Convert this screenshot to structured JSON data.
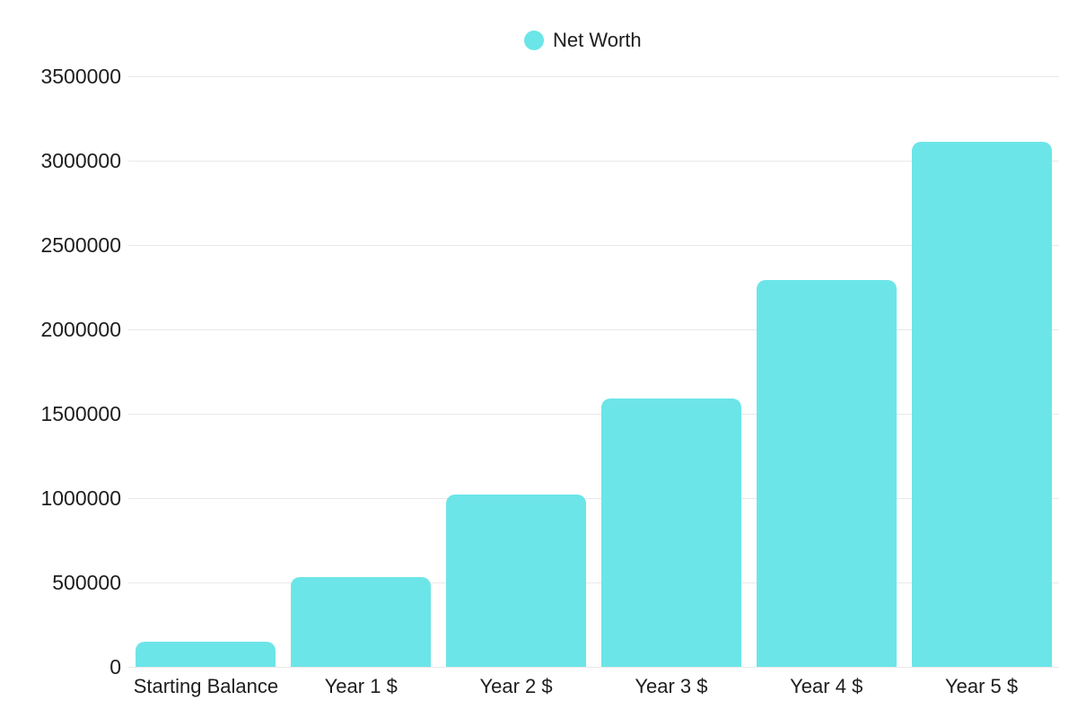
{
  "chart_data": {
    "type": "bar",
    "title": "",
    "legend": "Net Worth",
    "legend_position": "top-center",
    "categories": [
      "Starting Balance",
      "Year 1 $",
      "Year 2 $",
      "Year 3 $",
      "Year 4 $",
      "Year 5 $"
    ],
    "series": [
      {
        "name": "Net Worth",
        "values": [
          150000,
          530000,
          1020000,
          1590000,
          2290000,
          3110000
        ]
      }
    ],
    "xlabel": "",
    "ylabel": "",
    "ylim": [
      0,
      3500000
    ],
    "y_ticks": [
      0,
      500000,
      1000000,
      1500000,
      2000000,
      2500000,
      3000000,
      3500000
    ],
    "y_tick_labels": [
      "0",
      "500000",
      "1000000",
      "1500000",
      "2000000",
      "2500000",
      "3000000",
      "3500000"
    ],
    "grid": true,
    "bar_color": "#6CE5E8",
    "gridline_color": "#E8E8E8",
    "text_color": "#1E1E1E",
    "background_color": "#FFFFFF"
  }
}
